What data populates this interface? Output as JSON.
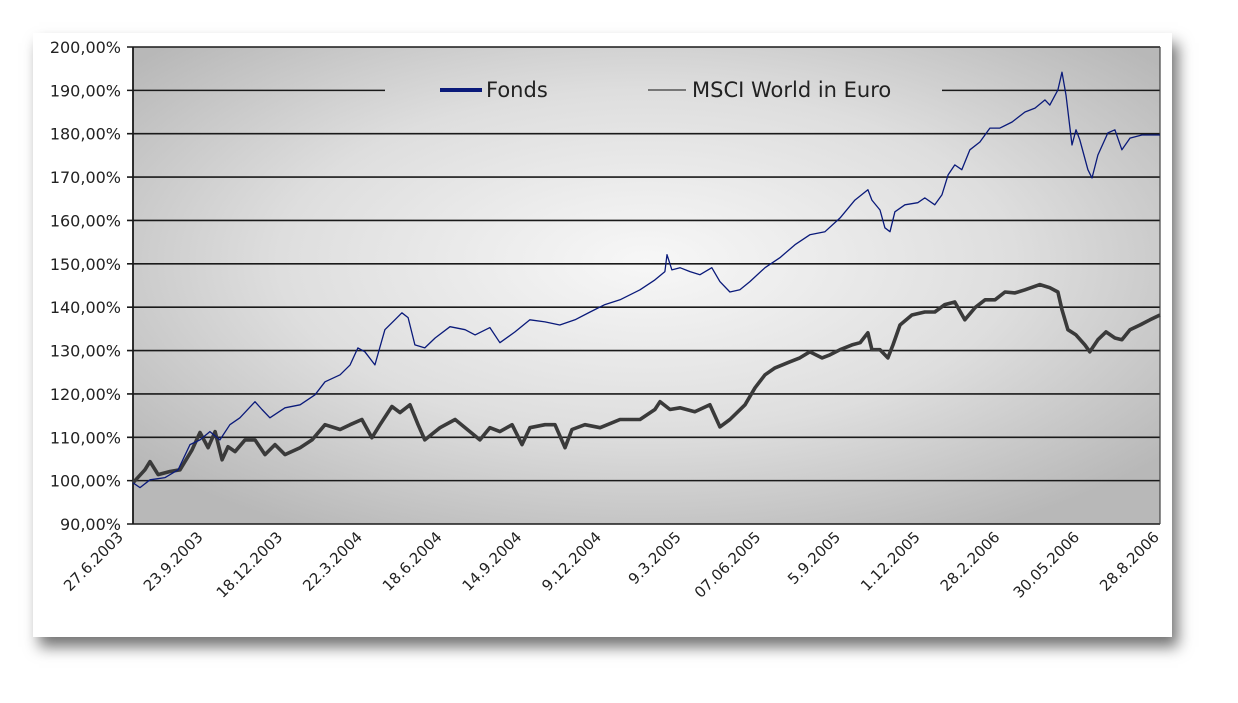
{
  "chart_data": {
    "type": "line",
    "title": "",
    "xlabel": "",
    "ylabel": "",
    "x_unit": "months since 27.6.2003",
    "xlim": [
      0,
      38.04
    ],
    "ylim": [
      90,
      200
    ],
    "grid": true,
    "legend_placement": "top-center",
    "y_ticks": [
      "90,00%",
      "100,00%",
      "110,00%",
      "120,00%",
      "130,00%",
      "140,00%",
      "150,00%",
      "160,00%",
      "170,00%",
      "180,00%",
      "190,00%",
      "200,00%"
    ],
    "y_tick_values": [
      90,
      100,
      110,
      120,
      130,
      140,
      150,
      160,
      170,
      180,
      190,
      200
    ],
    "x_ticks": [
      "27.6.2003",
      "23.9.2003",
      "18.12.2003",
      "22.3.2004",
      "18.6.2004",
      "14.9.2004",
      "9.12.2004",
      "9.3.2005",
      "07.06.2005",
      "5.9.2005",
      "1.12.2005",
      "28.2.2006",
      "30.05.2006",
      "28.8.2006"
    ],
    "series": [
      {
        "name": "Fonds",
        "color": "#0a1a7a",
        "x": [
          0,
          0.26,
          0.63,
          1.19,
          1.67,
          2.11,
          2.48,
          2.85,
          3.22,
          3.59,
          3.96,
          4.52,
          4.78,
          5.07,
          5.63,
          6.19,
          6.74,
          7.11,
          7.67,
          8.04,
          8.33,
          8.59,
          8.96,
          9.33,
          9.7,
          9.96,
          10.19,
          10.44,
          10.81,
          11.19,
          11.74,
          12.3,
          12.67,
          13.22,
          13.59,
          14.15,
          14.7,
          15.26,
          15.81,
          16.37,
          16.93,
          17.48,
          18.04,
          18.78,
          19.33,
          19.7,
          19.78,
          19.96,
          20.26,
          20.63,
          21.0,
          21.44,
          21.74,
          22.11,
          22.48,
          22.85,
          23.41,
          23.96,
          24.52,
          25.07,
          25.63,
          26.19,
          26.74,
          27.22,
          27.37,
          27.67,
          27.85,
          28.04,
          28.22,
          28.59,
          29.07,
          29.33,
          29.7,
          29.96,
          30.19,
          30.44,
          30.7,
          31.0,
          31.37,
          31.74,
          32.11,
          32.56,
          33.04,
          33.41,
          33.78,
          33.96,
          34.26,
          34.41,
          34.56,
          34.78,
          34.93,
          35.07,
          35.37,
          35.52,
          35.74,
          36.11,
          36.37,
          36.63,
          36.93,
          37.37,
          38.04
        ],
        "values": [
          99.5,
          98.4,
          100.2,
          100.7,
          102.5,
          108.3,
          109.4,
          111.3,
          109.4,
          112.9,
          114.5,
          118.2,
          116.4,
          114.5,
          116.8,
          117.5,
          119.8,
          122.8,
          124.4,
          126.7,
          130.6,
          129.7,
          126.7,
          134.8,
          137.1,
          138.7,
          137.6,
          131.3,
          130.6,
          132.9,
          135.5,
          134.8,
          133.6,
          135.3,
          131.8,
          134.3,
          137.1,
          136.6,
          135.9,
          137.1,
          138.9,
          140.6,
          141.7,
          144.0,
          146.3,
          148.2,
          152.1,
          148.6,
          149.1,
          148.2,
          147.5,
          149.1,
          145.9,
          143.5,
          144.0,
          145.9,
          149.1,
          151.4,
          154.4,
          156.7,
          157.4,
          160.6,
          164.7,
          167.1,
          164.7,
          162.4,
          158.3,
          157.4,
          162.0,
          163.6,
          164.1,
          165.2,
          163.6,
          165.9,
          170.5,
          172.8,
          171.7,
          176.3,
          178.1,
          181.3,
          181.3,
          182.7,
          185.0,
          185.9,
          187.8,
          186.6,
          190.1,
          194.2,
          188.9,
          177.4,
          180.9,
          178.6,
          171.7,
          169.8,
          175.1,
          180.2,
          180.9,
          176.3,
          179.0,
          179.7,
          179.7
        ]
      },
      {
        "name": "MSCI World in Euro",
        "color": "#3a3a3a",
        "x": [
          0,
          0.44,
          0.63,
          0.93,
          1.37,
          1.74,
          2.19,
          2.48,
          2.78,
          3.04,
          3.3,
          3.52,
          3.78,
          4.15,
          4.52,
          4.89,
          5.26,
          5.63,
          6.19,
          6.63,
          7.11,
          7.67,
          8.04,
          8.48,
          8.85,
          9.15,
          9.59,
          9.89,
          10.26,
          10.56,
          10.81,
          11.37,
          11.93,
          12.48,
          12.85,
          13.22,
          13.59,
          14.04,
          14.41,
          14.7,
          15.26,
          15.63,
          16.0,
          16.26,
          16.74,
          17.3,
          18.04,
          18.78,
          19.33,
          19.52,
          19.89,
          20.26,
          20.81,
          21.37,
          21.74,
          22.11,
          22.67,
          23.04,
          23.41,
          23.78,
          24.33,
          24.7,
          25.07,
          25.52,
          25.81,
          26.19,
          26.63,
          26.93,
          27.22,
          27.37,
          27.67,
          27.96,
          28.15,
          28.41,
          28.85,
          29.33,
          29.7,
          30.07,
          30.44,
          30.81,
          31.19,
          31.56,
          31.93,
          32.3,
          32.67,
          33.04,
          33.59,
          33.96,
          34.26,
          34.41,
          34.63,
          34.93,
          35.26,
          35.44,
          35.74,
          36.04,
          36.37,
          36.63,
          36.93,
          37.3,
          37.67,
          38.04
        ],
        "values": [
          99.5,
          102.5,
          104.4,
          101.4,
          102.1,
          102.5,
          107.1,
          111.1,
          107.6,
          111.3,
          104.8,
          107.8,
          106.7,
          109.4,
          109.4,
          106.0,
          108.3,
          106.0,
          107.6,
          109.4,
          112.9,
          111.8,
          112.9,
          114.1,
          109.9,
          112.9,
          117.1,
          115.7,
          117.5,
          112.9,
          109.4,
          112.2,
          114.1,
          111.3,
          109.4,
          112.2,
          111.3,
          112.9,
          108.3,
          112.2,
          112.9,
          112.9,
          107.6,
          111.8,
          112.9,
          112.2,
          114.1,
          114.1,
          116.4,
          118.2,
          116.4,
          116.8,
          115.9,
          117.5,
          112.4,
          114.1,
          117.5,
          121.4,
          124.4,
          126.0,
          127.4,
          128.3,
          129.7,
          128.3,
          129.0,
          130.2,
          131.3,
          131.8,
          134.1,
          130.2,
          130.2,
          128.3,
          131.3,
          135.9,
          138.2,
          138.9,
          138.9,
          140.6,
          141.2,
          137.1,
          139.9,
          141.7,
          141.7,
          143.5,
          143.3,
          144.0,
          145.2,
          144.5,
          143.5,
          139.4,
          134.8,
          133.6,
          131.3,
          129.7,
          132.5,
          134.3,
          132.9,
          132.5,
          134.8,
          135.9,
          137.1,
          138.2
        ]
      }
    ]
  }
}
